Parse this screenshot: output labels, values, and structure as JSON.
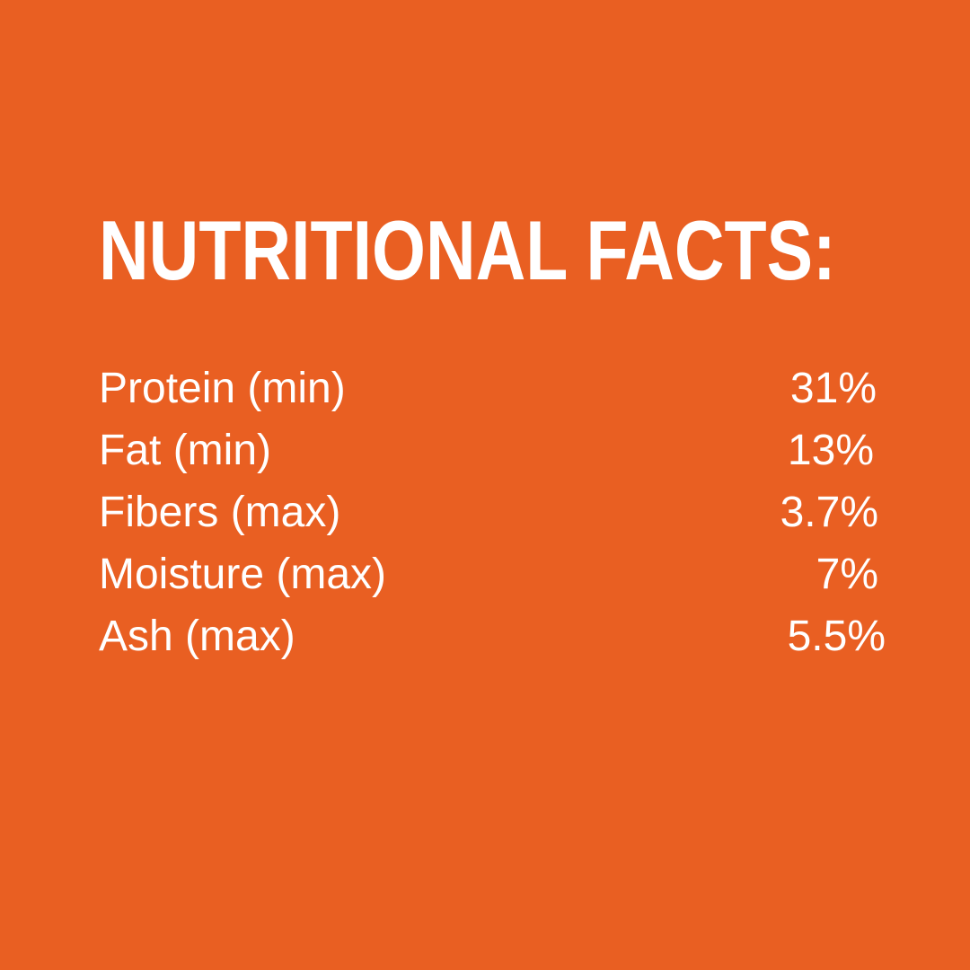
{
  "background_color": "#E95F22",
  "title": "NUTRITIONAL FACTS:",
  "rows": [
    {
      "label": "Protein (min)",
      "value": "31%"
    },
    {
      "label": "Fat (min)",
      "value": "13%"
    },
    {
      "label": "Fibers (max)",
      "value": "3.7%"
    },
    {
      "label": "Moisture (max)",
      "value": "7%"
    },
    {
      "label": "Ash (max)",
      "value": "5.5%"
    }
  ]
}
